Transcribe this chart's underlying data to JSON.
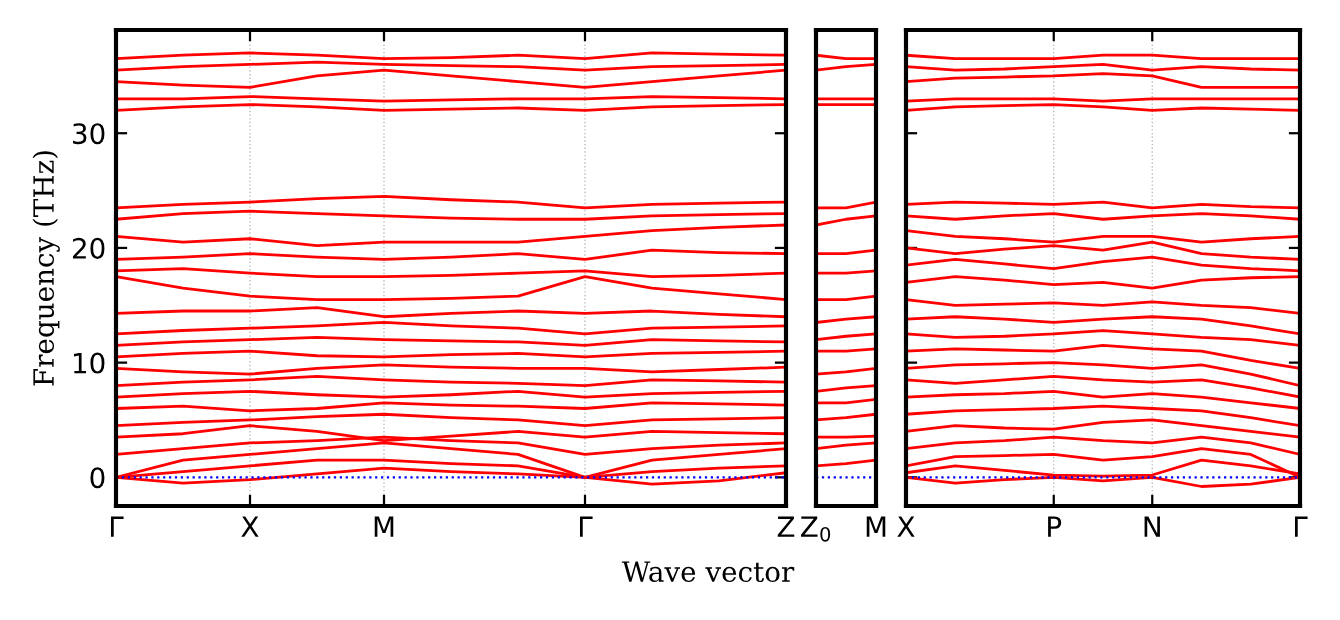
{
  "chart_data": [
    {
      "type": "line",
      "ylabel": "Frequency (THz)",
      "xlabel": "Wave vector",
      "categories": [
        "Γ",
        null,
        "X",
        null,
        "M",
        null,
        null,
        "Γ",
        null,
        null,
        "Z"
      ],
      "ylim": [
        -2.5,
        39
      ],
      "yticks": [
        0,
        10,
        20,
        30
      ],
      "grid": "x",
      "ref_lines": [
        {
          "axis": "y",
          "value": 0,
          "color": "#0000ff",
          "line_style": "dotted"
        }
      ],
      "series": [
        {
          "color": "#ff0000",
          "values": [
            0,
            -0.5,
            -0.2,
            0.3,
            0.8,
            0.5,
            0.3,
            0,
            -0.6,
            -0.3,
            0.4
          ]
        },
        {
          "color": "#ff0000",
          "values": [
            0,
            0.5,
            1.0,
            1.5,
            1.5,
            1.2,
            1.0,
            0,
            0.5,
            0.8,
            1.0
          ]
        },
        {
          "color": "#ff0000",
          "values": [
            0,
            1.5,
            2.0,
            2.5,
            3.0,
            2.5,
            2.0,
            0,
            1.5,
            2.0,
            2.5
          ]
        },
        {
          "color": "#ff0000",
          "values": [
            2.0,
            2.5,
            3.0,
            3.2,
            3.5,
            3.2,
            3.0,
            2.0,
            2.5,
            2.8,
            3.0
          ]
        },
        {
          "color": "#ff0000",
          "values": [
            3.5,
            3.8,
            4.5,
            4.0,
            3.2,
            3.6,
            4.0,
            3.5,
            4.0,
            3.9,
            3.8
          ]
        },
        {
          "color": "#ff0000",
          "values": [
            4.5,
            4.8,
            5.0,
            5.3,
            5.5,
            5.2,
            5.0,
            4.5,
            5.0,
            5.1,
            5.2
          ]
        },
        {
          "color": "#ff0000",
          "values": [
            6.0,
            6.2,
            5.8,
            6.0,
            6.5,
            6.3,
            6.2,
            6.0,
            6.5,
            6.4,
            6.3
          ]
        },
        {
          "color": "#ff0000",
          "values": [
            7.0,
            7.3,
            7.5,
            7.2,
            7.0,
            7.2,
            7.5,
            7.0,
            7.3,
            7.4,
            7.5
          ]
        },
        {
          "color": "#ff0000",
          "values": [
            8.0,
            8.3,
            8.5,
            8.8,
            8.5,
            8.3,
            8.2,
            8.0,
            8.5,
            8.4,
            8.3
          ]
        },
        {
          "color": "#ff0000",
          "values": [
            9.5,
            9.2,
            9.0,
            9.5,
            9.8,
            9.6,
            9.5,
            9.5,
            9.2,
            9.4,
            9.6
          ]
        },
        {
          "color": "#ff0000",
          "values": [
            10.5,
            10.8,
            11.0,
            10.6,
            10.5,
            10.7,
            10.8,
            10.5,
            10.8,
            10.9,
            11.0
          ]
        },
        {
          "color": "#ff0000",
          "values": [
            11.5,
            11.8,
            12.0,
            12.2,
            12.0,
            11.9,
            11.8,
            11.5,
            12.0,
            11.9,
            11.8
          ]
        },
        {
          "color": "#ff0000",
          "values": [
            12.5,
            12.8,
            13.0,
            13.2,
            13.5,
            13.2,
            13.0,
            12.5,
            13.0,
            13.1,
            13.2
          ]
        },
        {
          "color": "#ff0000",
          "values": [
            14.3,
            14.5,
            14.5,
            14.8,
            14.0,
            14.3,
            14.5,
            14.3,
            14.5,
            14.2,
            14.0
          ]
        },
        {
          "color": "#ff0000",
          "values": [
            17.5,
            16.5,
            15.8,
            15.5,
            15.5,
            15.6,
            15.8,
            17.5,
            16.5,
            16.0,
            15.5
          ]
        },
        {
          "color": "#ff0000",
          "values": [
            18.0,
            18.2,
            17.8,
            17.5,
            17.5,
            17.6,
            17.8,
            18.0,
            17.5,
            17.6,
            17.8
          ]
        },
        {
          "color": "#ff0000",
          "values": [
            19.0,
            19.2,
            19.5,
            19.2,
            19.0,
            19.2,
            19.5,
            19.0,
            19.8,
            19.6,
            19.5
          ]
        },
        {
          "color": "#ff0000",
          "values": [
            21.0,
            20.5,
            20.8,
            20.2,
            20.5,
            20.5,
            20.5,
            21.0,
            21.5,
            21.8,
            22.0
          ]
        },
        {
          "color": "#ff0000",
          "values": [
            22.5,
            23.0,
            23.2,
            23.0,
            22.8,
            22.6,
            22.5,
            22.5,
            22.8,
            22.9,
            23.0
          ]
        },
        {
          "color": "#ff0000",
          "values": [
            23.5,
            23.8,
            24.0,
            24.3,
            24.5,
            24.2,
            24.0,
            23.5,
            23.8,
            23.9,
            24.0
          ]
        },
        {
          "color": "#ff0000",
          "values": [
            32.0,
            32.3,
            32.5,
            32.3,
            32.0,
            32.1,
            32.2,
            32.0,
            32.3,
            32.4,
            32.5
          ]
        },
        {
          "color": "#ff0000",
          "values": [
            33.0,
            33.0,
            33.2,
            33.0,
            32.8,
            32.9,
            33.0,
            33.0,
            33.2,
            33.1,
            33.0
          ]
        },
        {
          "color": "#ff0000",
          "values": [
            34.5,
            34.2,
            34.0,
            35.0,
            35.5,
            35.0,
            34.5,
            34.0,
            34.5,
            35.0,
            35.5
          ]
        },
        {
          "color": "#ff0000",
          "values": [
            35.5,
            35.8,
            36.0,
            36.2,
            36.0,
            35.9,
            35.8,
            35.5,
            35.8,
            35.9,
            36.0
          ]
        },
        {
          "color": "#ff0000",
          "values": [
            36.5,
            36.8,
            37.0,
            36.8,
            36.5,
            36.6,
            36.8,
            36.5,
            37.0,
            36.9,
            36.8
          ]
        }
      ]
    },
    {
      "type": "line",
      "categories": [
        "Z$_{0}$",
        null,
        "M"
      ],
      "ylim": [
        -2.5,
        39
      ],
      "yticks": [
        0,
        10,
        20,
        30
      ],
      "tick_labels": "x",
      "ref_lines": [
        {
          "axis": "y",
          "value": 0,
          "color": "#0000ff",
          "line_style": "dotted"
        }
      ],
      "series": [
        {
          "color": "#ff0000",
          "values": [
            1.0,
            1.2,
            1.5
          ]
        },
        {
          "color": "#ff0000",
          "values": [
            2.5,
            2.8,
            3.0
          ]
        },
        {
          "color": "#ff0000",
          "values": [
            3.5,
            3.5,
            3.6
          ]
        },
        {
          "color": "#ff0000",
          "values": [
            5.0,
            5.2,
            5.5
          ]
        },
        {
          "color": "#ff0000",
          "values": [
            6.5,
            6.5,
            6.8
          ]
        },
        {
          "color": "#ff0000",
          "values": [
            7.5,
            7.8,
            8.0
          ]
        },
        {
          "color": "#ff0000",
          "values": [
            9.0,
            9.2,
            9.5
          ]
        },
        {
          "color": "#ff0000",
          "values": [
            11.0,
            11.0,
            11.2
          ]
        },
        {
          "color": "#ff0000",
          "values": [
            12.0,
            12.3,
            12.5
          ]
        },
        {
          "color": "#ff0000",
          "values": [
            13.5,
            13.8,
            14.0
          ]
        },
        {
          "color": "#ff0000",
          "values": [
            15.5,
            15.5,
            15.8
          ]
        },
        {
          "color": "#ff0000",
          "values": [
            17.8,
            17.8,
            18.0
          ]
        },
        {
          "color": "#ff0000",
          "values": [
            19.5,
            19.5,
            19.8
          ]
        },
        {
          "color": "#ff0000",
          "values": [
            22.0,
            22.5,
            22.8
          ]
        },
        {
          "color": "#ff0000",
          "values": [
            23.5,
            23.5,
            24.0
          ]
        },
        {
          "color": "#ff0000",
          "values": [
            32.5,
            32.5,
            32.5
          ]
        },
        {
          "color": "#ff0000",
          "values": [
            33.0,
            33.0,
            33.0
          ]
        },
        {
          "color": "#ff0000",
          "values": [
            35.5,
            35.8,
            36.0
          ]
        },
        {
          "color": "#ff0000",
          "values": [
            36.8,
            36.5,
            36.5
          ]
        }
      ]
    },
    {
      "type": "line",
      "categories": [
        "X",
        null,
        null,
        "P",
        null,
        "N",
        null,
        null,
        "Γ"
      ],
      "ylim": [
        -2.5,
        39
      ],
      "yticks": [
        0,
        10,
        20,
        30
      ],
      "tick_labels": "x",
      "grid": "x",
      "ref_lines": [
        {
          "axis": "y",
          "value": 0,
          "color": "#0000ff",
          "line_style": "dotted"
        }
      ],
      "series": [
        {
          "color": "#ff0000",
          "values": [
            0,
            -0.5,
            -0.2,
            0,
            -0.3,
            0,
            -0.8,
            -0.6,
            0
          ]
        },
        {
          "color": "#ff0000",
          "values": [
            0.4,
            1.0,
            0.6,
            0.2,
            0.1,
            0.2,
            1.5,
            1.0,
            0.3
          ]
        },
        {
          "color": "#ff0000",
          "values": [
            1.0,
            1.8,
            1.9,
            2.0,
            1.5,
            1.8,
            2.5,
            2.0,
            0
          ]
        },
        {
          "color": "#ff0000",
          "values": [
            2.5,
            3.0,
            3.2,
            3.5,
            3.2,
            3.0,
            3.5,
            3.0,
            2.0
          ]
        },
        {
          "color": "#ff0000",
          "values": [
            4.0,
            4.5,
            4.3,
            4.2,
            4.8,
            5.0,
            4.5,
            4.0,
            3.5
          ]
        },
        {
          "color": "#ff0000",
          "values": [
            5.5,
            5.8,
            5.9,
            6.0,
            6.2,
            6.0,
            5.8,
            5.2,
            4.5
          ]
        },
        {
          "color": "#ff0000",
          "values": [
            7.0,
            7.2,
            7.3,
            7.5,
            7.0,
            7.3,
            7.0,
            6.5,
            6.0
          ]
        },
        {
          "color": "#ff0000",
          "values": [
            8.5,
            8.2,
            8.5,
            8.8,
            8.5,
            8.3,
            8.5,
            7.8,
            7.0
          ]
        },
        {
          "color": "#ff0000",
          "values": [
            9.5,
            9.8,
            9.9,
            10.0,
            9.8,
            9.5,
            9.8,
            9.0,
            8.0
          ]
        },
        {
          "color": "#ff0000",
          "values": [
            11.0,
            11.2,
            11.1,
            11.0,
            11.5,
            11.2,
            11.0,
            10.2,
            9.5
          ]
        },
        {
          "color": "#ff0000",
          "values": [
            12.5,
            12.2,
            12.3,
            12.5,
            12.8,
            12.5,
            12.2,
            12.0,
            11.5
          ]
        },
        {
          "color": "#ff0000",
          "values": [
            13.8,
            14.0,
            13.8,
            13.5,
            13.8,
            14.0,
            13.8,
            13.2,
            12.5
          ]
        },
        {
          "color": "#ff0000",
          "values": [
            15.5,
            15.0,
            15.1,
            15.2,
            15.0,
            15.3,
            15.0,
            14.8,
            14.3
          ]
        },
        {
          "color": "#ff0000",
          "values": [
            17.0,
            17.5,
            17.2,
            16.8,
            17.0,
            16.5,
            17.2,
            17.4,
            17.5
          ]
        },
        {
          "color": "#ff0000",
          "values": [
            18.5,
            19.0,
            18.6,
            18.2,
            18.8,
            19.2,
            18.5,
            18.2,
            18.0
          ]
        },
        {
          "color": "#ff0000",
          "values": [
            20.0,
            19.5,
            19.9,
            20.2,
            19.8,
            20.5,
            19.5,
            19.2,
            19.0
          ]
        },
        {
          "color": "#ff0000",
          "values": [
            21.5,
            21.0,
            20.8,
            20.5,
            21.0,
            21.0,
            20.5,
            20.8,
            21.0
          ]
        },
        {
          "color": "#ff0000",
          "values": [
            22.8,
            22.5,
            22.8,
            23.0,
            22.5,
            22.8,
            23.0,
            22.8,
            22.5
          ]
        },
        {
          "color": "#ff0000",
          "values": [
            23.8,
            24.0,
            23.9,
            23.8,
            24.0,
            23.5,
            23.8,
            23.6,
            23.5
          ]
        },
        {
          "color": "#ff0000",
          "values": [
            32.0,
            32.3,
            32.4,
            32.5,
            32.3,
            32.0,
            32.2,
            32.1,
            32.0
          ]
        },
        {
          "color": "#ff0000",
          "values": [
            32.8,
            33.0,
            33.0,
            33.0,
            32.8,
            33.0,
            33.0,
            33.0,
            33.0
          ]
        },
        {
          "color": "#ff0000",
          "values": [
            34.5,
            34.8,
            34.9,
            35.0,
            35.2,
            35.0,
            34.0,
            34.0,
            34.0
          ]
        },
        {
          "color": "#ff0000",
          "values": [
            35.8,
            35.5,
            35.6,
            35.8,
            36.0,
            35.5,
            35.8,
            35.6,
            35.5
          ]
        },
        {
          "color": "#ff0000",
          "values": [
            36.8,
            36.5,
            36.5,
            36.5,
            36.8,
            36.8,
            36.5,
            36.5,
            36.5
          ]
        }
      ]
    }
  ]
}
